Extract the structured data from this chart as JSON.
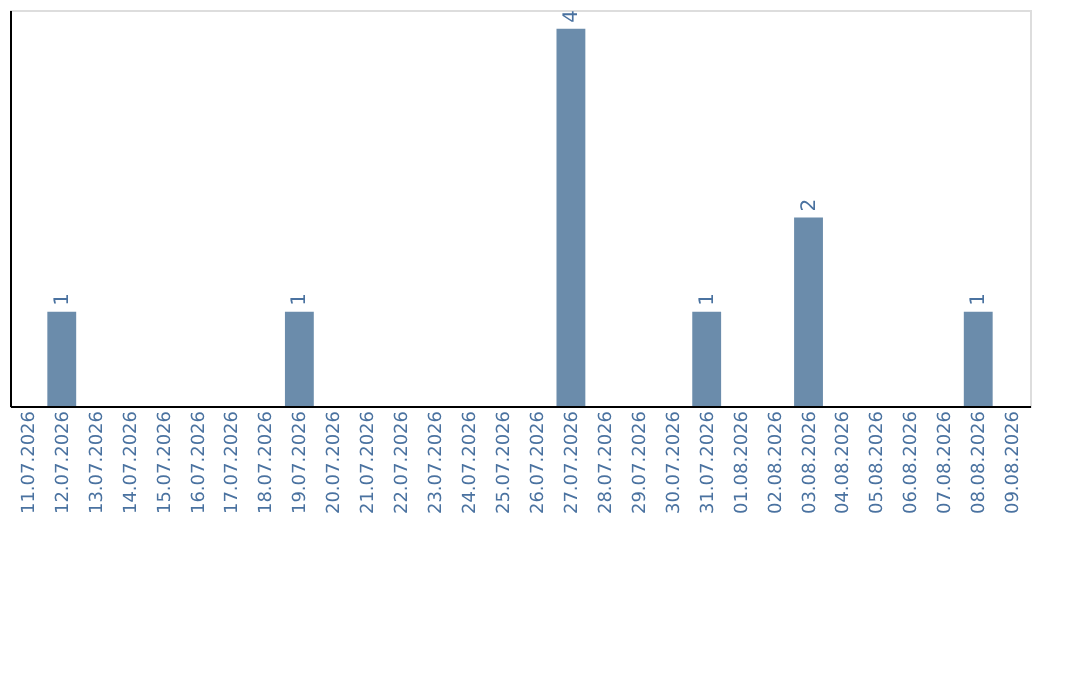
{
  "chart_data": {
    "type": "bar",
    "categories": [
      "11.07.2026",
      "12.07.2026",
      "13.07.2026",
      "14.07.2026",
      "15.07.2026",
      "16.07.2026",
      "17.07.2026",
      "18.07.2026",
      "19.07.2026",
      "20.07.2026",
      "21.07.2026",
      "22.07.2026",
      "23.07.2026",
      "24.07.2026",
      "25.07.2026",
      "26.07.2026",
      "27.07.2026",
      "28.07.2026",
      "29.07.2026",
      "30.07.2026",
      "31.07.2026",
      "01.08.2026",
      "02.08.2026",
      "03.08.2026",
      "04.08.2026",
      "05.08.2026",
      "06.08.2026",
      "07.08.2026",
      "08.08.2026",
      "09.08.2026"
    ],
    "values": [
      0,
      1,
      0,
      0,
      0,
      0,
      0,
      0,
      1,
      0,
      0,
      0,
      0,
      0,
      0,
      0,
      4,
      0,
      0,
      0,
      1,
      0,
      0,
      2,
      0,
      0,
      0,
      0,
      1,
      0
    ],
    "value_labels": [
      null,
      "1",
      null,
      null,
      null,
      null,
      null,
      null,
      "1",
      null,
      null,
      null,
      null,
      null,
      null,
      null,
      "4",
      null,
      null,
      null,
      "1",
      null,
      null,
      "2",
      null,
      null,
      null,
      null,
      "1",
      null
    ],
    "color": "#6b8cab",
    "ylim": [
      0,
      4.2
    ],
    "tick_labels": "x",
    "grid": false
  }
}
